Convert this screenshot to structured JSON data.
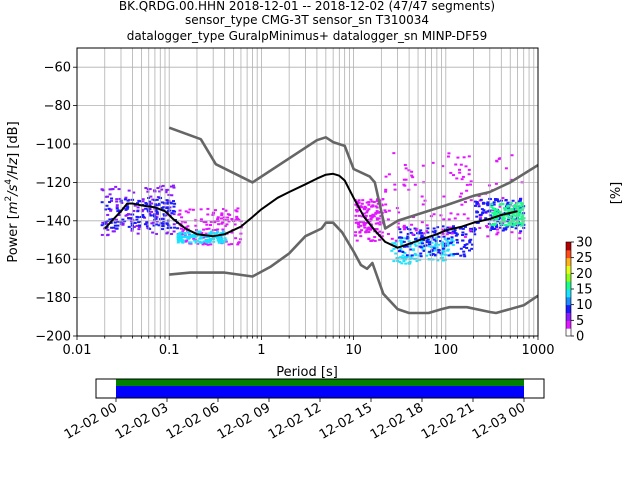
{
  "chart_data": {
    "type": "heatmap",
    "title_lines": [
      "BK.QRDG.00.HHN   2018-12-01 -- 2018-12-02  (47/47 segments)",
      "sensor_type CMG-3T sensor_sn T310034",
      "datalogger_type GuralpMinimus+ datalogger_sn MINP-DF59"
    ],
    "xlabel": "Period [s]",
    "ylabel_parts": [
      "Power [",
      "m",
      "2",
      "/s",
      "4",
      "/Hz",
      "] [dB]"
    ],
    "x_scale": "log",
    "xlim": [
      0.01,
      1000
    ],
    "ylim": [
      -200,
      -50
    ],
    "x_ticks": [
      0.01,
      0.1,
      1,
      10,
      100,
      1000
    ],
    "x_tick_labels": [
      "0.01",
      "0.1",
      "1",
      "10",
      "100",
      "1000"
    ],
    "y_ticks": [
      -200,
      -180,
      -160,
      -140,
      -120,
      -100,
      -80,
      -60
    ],
    "y_tick_labels": [
      "−200",
      "−180",
      "−160",
      "−140",
      "−120",
      "−100",
      "−80",
      "−60"
    ],
    "grid": true,
    "colorbar": {
      "label": "[%]",
      "ticks": [
        0,
        5,
        10,
        15,
        20,
        25,
        30
      ],
      "tick_labels": [
        "0",
        "5",
        "10",
        "15",
        "20",
        "25",
        "30"
      ],
      "range": [
        0,
        30
      ],
      "colors": [
        "#ffffff",
        "#e317ff",
        "#8c1aff",
        "#1a1aff",
        "#1a8cff",
        "#19e3ff",
        "#19ff8c",
        "#8cff19",
        "#e3ff19",
        "#ffb31a",
        "#ff4a1a",
        "#b30000"
      ]
    },
    "series": [
      {
        "role": "median",
        "color": "#000000",
        "points": [
          [
            0.02,
            -144
          ],
          [
            0.025,
            -139
          ],
          [
            0.03,
            -135
          ],
          [
            0.035,
            -131
          ],
          [
            0.04,
            -131
          ],
          [
            0.05,
            -132
          ],
          [
            0.07,
            -133
          ],
          [
            0.09,
            -135
          ],
          [
            0.11,
            -139
          ],
          [
            0.15,
            -144
          ],
          [
            0.2,
            -147
          ],
          [
            0.3,
            -148
          ],
          [
            0.4,
            -147
          ],
          [
            0.6,
            -143
          ],
          [
            0.8,
            -138
          ],
          [
            1,
            -134
          ],
          [
            1.5,
            -128
          ],
          [
            2,
            -125
          ],
          [
            3,
            -121
          ],
          [
            4,
            -118
          ],
          [
            5,
            -116
          ],
          [
            6,
            -115.5
          ],
          [
            7,
            -116.5
          ],
          [
            8,
            -119
          ],
          [
            10,
            -128
          ],
          [
            13,
            -138
          ],
          [
            17,
            -145
          ],
          [
            22,
            -151
          ],
          [
            30,
            -154
          ],
          [
            40,
            -152
          ],
          [
            60,
            -149
          ],
          [
            80,
            -147
          ],
          [
            100,
            -145
          ],
          [
            150,
            -143
          ],
          [
            200,
            -141
          ],
          [
            300,
            -139
          ],
          [
            400,
            -137
          ],
          [
            600,
            -135
          ]
        ]
      },
      {
        "role": "noise-model",
        "color": "#666666",
        "points": [
          [
            0.1,
            -91.5
          ],
          [
            0.22,
            -97.5
          ],
          [
            0.32,
            -110.5
          ],
          [
            0.8,
            -120
          ],
          [
            4,
            -98
          ],
          [
            5,
            -96.5
          ],
          [
            6,
            -99
          ],
          [
            8,
            -101
          ],
          [
            10,
            -113
          ],
          [
            15,
            -117
          ],
          [
            17,
            -120
          ],
          [
            22,
            -144
          ],
          [
            30,
            -140
          ],
          [
            100,
            -132
          ],
          [
            200,
            -127
          ],
          [
            300,
            -125
          ],
          [
            500,
            -120
          ],
          [
            1000,
            -111
          ]
        ]
      },
      {
        "role": "noise-model",
        "color": "#666666",
        "points": [
          [
            0.1,
            -168
          ],
          [
            0.17,
            -167
          ],
          [
            0.4,
            -167
          ],
          [
            0.8,
            -169
          ],
          [
            1.25,
            -164
          ],
          [
            2,
            -157
          ],
          [
            3,
            -148
          ],
          [
            4.5,
            -144
          ],
          [
            5,
            -141
          ],
          [
            6,
            -141
          ],
          [
            7.5,
            -146
          ],
          [
            10,
            -156
          ],
          [
            12,
            -163
          ],
          [
            14,
            -165
          ],
          [
            16,
            -162
          ],
          [
            21,
            -178
          ],
          [
            30,
            -186
          ],
          [
            40,
            -188
          ],
          [
            65,
            -188
          ],
          [
            90,
            -186
          ],
          [
            110,
            -185
          ],
          [
            170,
            -185
          ],
          [
            300,
            -187.5
          ],
          [
            350,
            -188
          ],
          [
            700,
            -184
          ],
          [
            1000,
            -179
          ]
        ]
      }
    ],
    "density_bands": [
      {
        "x_from": 0.018,
        "x_to": 0.11,
        "y_from": -147,
        "y_to": -121,
        "color": "#8c1aff"
      },
      {
        "x_from": 0.018,
        "x_to": 0.12,
        "y_from": -144,
        "y_to": -127,
        "color": "#1a1aff"
      },
      {
        "x_from": 0.12,
        "x_to": 0.6,
        "y_from": -152,
        "y_to": -133,
        "color": "#e317ff"
      },
      {
        "x_from": 0.12,
        "x_to": 0.4,
        "y_from": -151,
        "y_to": -145,
        "color": "#19e3ff"
      },
      {
        "x_from": 10,
        "x_to": 20,
        "y_from": -150,
        "y_to": -128,
        "color": "#e317ff"
      },
      {
        "x_from": 25,
        "x_to": 120,
        "y_from": -162,
        "y_to": -148,
        "color": "#19e3ff"
      },
      {
        "x_from": 30,
        "x_to": 200,
        "y_from": -158,
        "y_to": -142,
        "color": "#1a1aff"
      },
      {
        "x_from": 20,
        "x_to": 680,
        "y_from": -150,
        "y_to": -104,
        "color": "#e317ff"
      },
      {
        "x_from": 200,
        "x_to": 680,
        "y_from": -145,
        "y_to": -128,
        "color": "#1a1aff"
      },
      {
        "x_from": 300,
        "x_to": 680,
        "y_from": -142,
        "y_to": -130,
        "color": "#19ff8c"
      }
    ],
    "timeline": {
      "tick_labels": [
        "12-02 00",
        "12-02 03",
        "12-02 06",
        "12-02 09",
        "12-02 12",
        "12-02 15",
        "12-02 18",
        "12-02 21",
        "12-03 00"
      ],
      "bars": [
        {
          "color": "#008000",
          "from": 0,
          "to": 1
        },
        {
          "color": "#0000ff",
          "from": 0,
          "to": 1
        }
      ]
    }
  }
}
